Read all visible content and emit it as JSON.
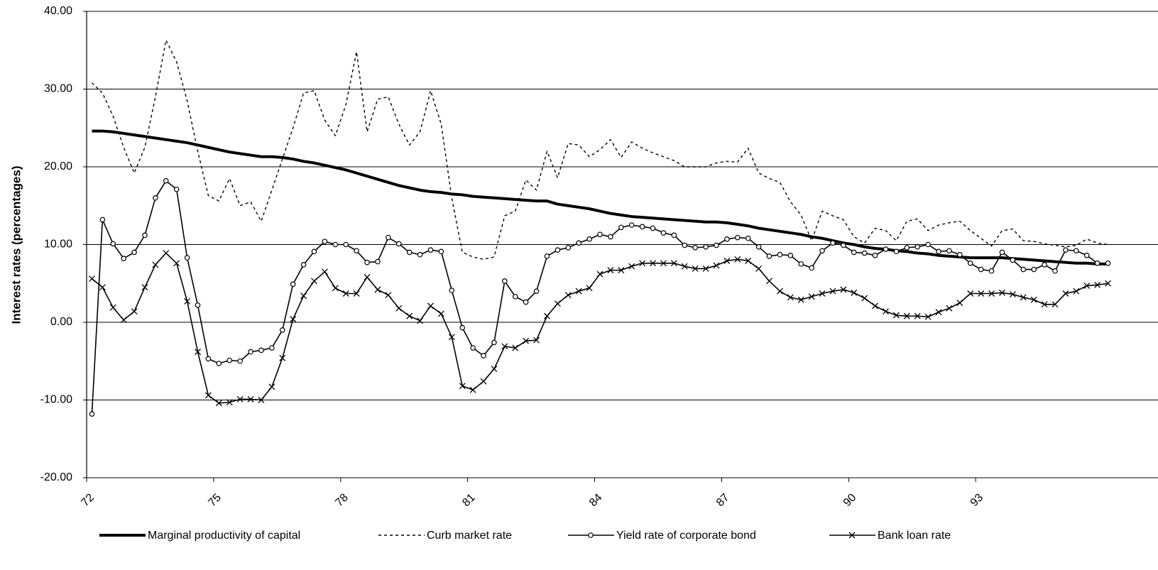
{
  "chart_data": {
    "type": "line",
    "y_label": "Interest rates (percentages)",
    "categories": [
      "72",
      null,
      null,
      null,
      null,
      null,
      null,
      null,
      null,
      null,
      null,
      null,
      "75",
      null,
      null,
      null,
      null,
      null,
      null,
      null,
      null,
      null,
      null,
      null,
      "78",
      null,
      null,
      null,
      null,
      null,
      null,
      null,
      null,
      null,
      null,
      null,
      "81",
      null,
      null,
      null,
      null,
      null,
      null,
      null,
      null,
      null,
      null,
      null,
      "84",
      null,
      null,
      null,
      null,
      null,
      null,
      null,
      null,
      null,
      null,
      null,
      "87",
      null,
      null,
      null,
      null,
      null,
      null,
      null,
      null,
      null,
      null,
      null,
      "90",
      null,
      null,
      null,
      null,
      null,
      null,
      null,
      null,
      null,
      null,
      null,
      "93",
      null,
      null,
      null,
      null,
      null,
      null,
      null,
      null,
      null,
      null,
      null,
      null
    ],
    "ylim": [
      -20,
      40
    ],
    "yticks": [
      {
        "value": -20,
        "label": "-20.00"
      },
      {
        "value": -10,
        "label": "-10.00"
      },
      {
        "value": 0,
        "label": "0.00"
      },
      {
        "value": 10,
        "label": "10.00"
      },
      {
        "value": 20,
        "label": "20.00"
      },
      {
        "value": 30,
        "label": "30.00"
      },
      {
        "value": 40,
        "label": "40.00"
      }
    ],
    "grid": true,
    "legend": "bottom",
    "series": [
      {
        "name": "Marginal productivity of capital",
        "color": "#000000",
        "width": 4,
        "dash": "none",
        "marker": "none",
        "values": [
          24.6,
          24.6,
          24.5,
          24.3,
          24.1,
          23.9,
          23.7,
          23.5,
          23.3,
          23.1,
          22.8,
          22.5,
          22.2,
          21.9,
          21.7,
          21.5,
          21.3,
          21.3,
          21.2,
          21.0,
          20.7,
          20.5,
          20.2,
          19.9,
          19.6,
          19.2,
          18.8,
          18.4,
          18.0,
          17.6,
          17.3,
          17.0,
          16.8,
          16.7,
          16.5,
          16.4,
          16.2,
          16.1,
          16.0,
          15.9,
          15.8,
          15.7,
          15.6,
          15.6,
          15.2,
          15.0,
          14.8,
          14.6,
          14.3,
          14.0,
          13.8,
          13.6,
          13.5,
          13.4,
          13.3,
          13.2,
          13.1,
          13.0,
          12.9,
          12.9,
          12.8,
          12.6,
          12.4,
          12.1,
          11.9,
          11.7,
          11.5,
          11.3,
          11.0,
          10.8,
          10.5,
          10.2,
          10.0,
          9.7,
          9.5,
          9.4,
          9.2,
          9.1,
          8.9,
          8.8,
          8.6,
          8.5,
          8.4,
          8.3,
          8.3,
          8.3,
          8.3,
          8.2,
          8.1,
          8.0,
          7.9,
          7.8,
          7.7,
          7.6,
          7.6,
          7.5,
          7.5
        ]
      },
      {
        "name": "Curb market rate",
        "color": "#000000",
        "width": 1.4,
        "dash": "4 4",
        "marker": "none",
        "values": [
          30.8,
          29.5,
          26.5,
          22.5,
          19.2,
          22.5,
          29.0,
          36.3,
          33.5,
          28.5,
          22.0,
          16.3,
          15.6,
          18.5,
          15.0,
          15.5,
          13.0,
          17.0,
          21.0,
          25.0,
          29.5,
          29.8,
          26.0,
          24.0,
          28.0,
          34.8,
          24.5,
          28.7,
          29.0,
          25.5,
          22.8,
          24.5,
          29.8,
          25.5,
          16.0,
          9.0,
          8.4,
          8.1,
          8.4,
          13.7,
          14.3,
          18.3,
          17.0,
          22.0,
          18.6,
          23.0,
          22.8,
          21.3,
          22.2,
          23.5,
          21.2,
          23.2,
          22.4,
          21.8,
          21.3,
          20.8,
          20.0,
          20.0,
          20.0,
          20.5,
          20.7,
          20.6,
          22.4,
          19.2,
          18.5,
          18.0,
          15.5,
          13.8,
          10.5,
          14.3,
          13.7,
          13.2,
          11.0,
          10.2,
          12.1,
          11.8,
          10.5,
          13.0,
          13.3,
          11.8,
          12.5,
          12.8,
          13.0,
          11.8,
          10.8,
          9.8,
          11.8,
          12.0,
          10.5,
          10.4,
          10.1,
          9.9,
          9.7,
          9.9,
          10.7,
          10.2,
          10.0
        ]
      },
      {
        "name": "Yield rate of corporate bond",
        "color": "#000000",
        "width": 1.6,
        "dash": "none",
        "marker": "circle",
        "values": [
          -11.8,
          13.2,
          10.1,
          8.2,
          9.0,
          11.2,
          16.0,
          18.2,
          17.1,
          8.3,
          2.2,
          -4.7,
          -5.3,
          -4.9,
          -5.0,
          -3.8,
          -3.6,
          -3.3,
          -1.0,
          4.9,
          7.4,
          9.1,
          10.4,
          10.0,
          10.0,
          9.2,
          7.7,
          7.8,
          10.9,
          10.1,
          9.0,
          8.7,
          9.3,
          9.1,
          4.1,
          -0.7,
          -3.3,
          -4.3,
          -2.6,
          5.3,
          3.3,
          2.6,
          4.0,
          8.5,
          9.3,
          9.6,
          10.2,
          10.7,
          11.3,
          11.0,
          12.2,
          12.5,
          12.3,
          12.1,
          11.5,
          11.2,
          9.9,
          9.6,
          9.7,
          9.9,
          10.7,
          10.9,
          10.8,
          9.7,
          8.5,
          8.7,
          8.6,
          7.5,
          7.0,
          9.2,
          10.2,
          9.9,
          9.0,
          8.9,
          8.6,
          9.4,
          9.1,
          9.6,
          9.7,
          10.0,
          9.1,
          9.2,
          8.7,
          7.6,
          6.8,
          6.6,
          9.0,
          8.0,
          6.8,
          6.8,
          7.4,
          6.6,
          9.3,
          9.2,
          8.6,
          7.6,
          7.6
        ]
      },
      {
        "name": "Bank loan rate",
        "color": "#000000",
        "width": 1.6,
        "dash": "none",
        "marker": "x",
        "values": [
          5.6,
          4.5,
          1.9,
          0.3,
          1.4,
          4.5,
          7.4,
          8.9,
          7.6,
          2.7,
          -3.8,
          -9.4,
          -10.4,
          -10.3,
          -9.9,
          -9.9,
          -10.0,
          -8.3,
          -4.6,
          0.4,
          3.4,
          5.3,
          6.5,
          4.4,
          3.7,
          3.7,
          5.8,
          4.2,
          3.5,
          1.8,
          0.8,
          0.2,
          2.1,
          1.1,
          -1.9,
          -8.2,
          -8.7,
          -7.6,
          -6.0,
          -3.1,
          -3.3,
          -2.4,
          -2.3,
          0.8,
          2.4,
          3.5,
          4.0,
          4.4,
          6.2,
          6.7,
          6.7,
          7.2,
          7.6,
          7.6,
          7.6,
          7.6,
          7.2,
          6.9,
          6.9,
          7.3,
          7.9,
          8.1,
          7.9,
          6.9,
          5.3,
          4.0,
          3.2,
          2.9,
          3.3,
          3.7,
          4.0,
          4.2,
          3.8,
          3.1,
          2.1,
          1.4,
          0.9,
          0.8,
          0.8,
          0.7,
          1.3,
          1.8,
          2.5,
          3.7,
          3.7,
          3.7,
          3.8,
          3.6,
          3.2,
          2.9,
          2.3,
          2.3,
          3.7,
          4.0,
          4.7,
          4.8,
          5.0
        ]
      }
    ]
  }
}
